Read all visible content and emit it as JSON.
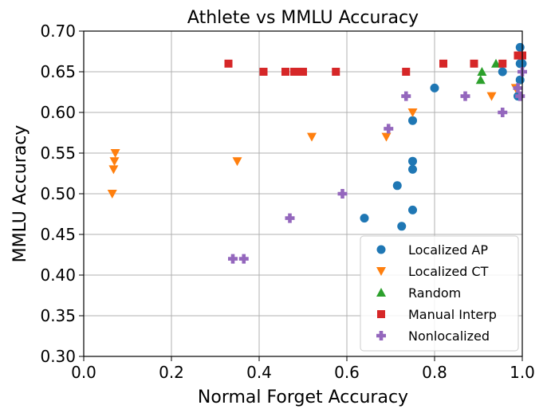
{
  "chart_data": {
    "type": "scatter",
    "title": "Athlete vs MMLU Accuracy",
    "xlabel": "Normal Forget Accuracy",
    "ylabel": "MMLU Accuracy",
    "xlim": [
      0.0,
      1.0
    ],
    "ylim": [
      0.3,
      0.7
    ],
    "xticks": [
      "0.0",
      "0.2",
      "0.4",
      "0.6",
      "0.8",
      "1.0"
    ],
    "yticks": [
      "0.30",
      "0.35",
      "0.40",
      "0.45",
      "0.50",
      "0.55",
      "0.60",
      "0.65",
      "0.70"
    ],
    "grid": true,
    "legend_position": "lower-right",
    "series": [
      {
        "name": "Localized AP",
        "marker": "circle",
        "color": "#1f77b4",
        "points": [
          [
            0.64,
            0.47
          ],
          [
            0.715,
            0.51
          ],
          [
            0.725,
            0.46
          ],
          [
            0.75,
            0.48
          ],
          [
            0.75,
            0.53
          ],
          [
            0.75,
            0.54
          ],
          [
            0.75,
            0.59
          ],
          [
            0.8,
            0.63
          ],
          [
            0.955,
            0.65
          ],
          [
            0.99,
            0.62
          ],
          [
            0.995,
            0.64
          ],
          [
            0.995,
            0.66
          ],
          [
            0.995,
            0.68
          ],
          [
            1.0,
            0.66
          ]
        ]
      },
      {
        "name": "Localized CT",
        "marker": "triangle-down",
        "color": "#ff7f0e",
        "points": [
          [
            0.065,
            0.5
          ],
          [
            0.068,
            0.53
          ],
          [
            0.07,
            0.54
          ],
          [
            0.072,
            0.55
          ],
          [
            0.35,
            0.54
          ],
          [
            0.52,
            0.57
          ],
          [
            0.69,
            0.57
          ],
          [
            0.75,
            0.6
          ],
          [
            0.93,
            0.62
          ],
          [
            0.985,
            0.63
          ],
          [
            0.995,
            0.67
          ]
        ]
      },
      {
        "name": "Random",
        "marker": "triangle-up",
        "color": "#2ca02c",
        "points": [
          [
            0.905,
            0.64
          ],
          [
            0.908,
            0.65
          ],
          [
            0.94,
            0.66
          ]
        ]
      },
      {
        "name": "Manual Interp",
        "marker": "square",
        "color": "#d62728",
        "points": [
          [
            0.33,
            0.66
          ],
          [
            0.41,
            0.65
          ],
          [
            0.46,
            0.65
          ],
          [
            0.48,
            0.65
          ],
          [
            0.49,
            0.65
          ],
          [
            0.5,
            0.65
          ],
          [
            0.575,
            0.65
          ],
          [
            0.735,
            0.65
          ],
          [
            0.82,
            0.66
          ],
          [
            0.89,
            0.66
          ],
          [
            0.955,
            0.66
          ],
          [
            0.99,
            0.67
          ],
          [
            1.0,
            0.67
          ]
        ]
      },
      {
        "name": "Nonlocalized",
        "marker": "plus",
        "color": "#9467bd",
        "points": [
          [
            0.34,
            0.42
          ],
          [
            0.365,
            0.42
          ],
          [
            0.47,
            0.47
          ],
          [
            0.59,
            0.5
          ],
          [
            0.695,
            0.58
          ],
          [
            0.735,
            0.62
          ],
          [
            0.87,
            0.62
          ],
          [
            0.955,
            0.6
          ],
          [
            0.99,
            0.63
          ],
          [
            0.995,
            0.62
          ],
          [
            1.0,
            0.65
          ]
        ]
      }
    ]
  }
}
